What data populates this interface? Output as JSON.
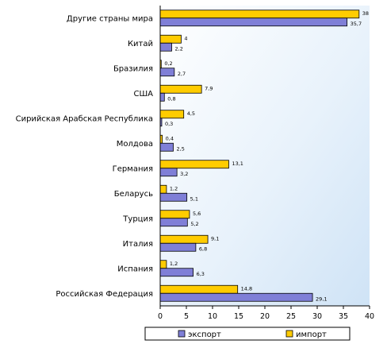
{
  "chart_data": {
    "type": "bar",
    "orientation": "horizontal",
    "categories": [
      "Другие страны мира",
      "Китай",
      "Бразилия",
      "США",
      "Сирийская Арабская Республика",
      "Молдова",
      "Германия",
      "Беларусь",
      "Турция",
      "Италия",
      "Испания",
      "Российская Федерация"
    ],
    "series": [
      {
        "name": "импорт",
        "color": "#FFCC00",
        "values": [
          38,
          4,
          0.2,
          7.9,
          4.5,
          0.4,
          13.1,
          1.2,
          5.6,
          9.1,
          1.2,
          14.8
        ],
        "labels": [
          "38",
          "4",
          "0,2",
          "7,9",
          "4,5",
          "0,4",
          "13,1",
          "1,2",
          "5,6",
          "9,1",
          "1,2",
          "14,8"
        ]
      },
      {
        "name": "экспорт",
        "color": "#7F7FD7",
        "values": [
          35.7,
          2.2,
          2.7,
          0.8,
          0.3,
          2.5,
          3.2,
          5.1,
          5.2,
          6.8,
          6.3,
          29.1
        ],
        "labels": [
          "35,7",
          "2,2",
          "2,7",
          "0,8",
          "0,3",
          "2,5",
          "3,2",
          "5,1",
          "5,2",
          "6,8",
          "6,3",
          "29,1"
        ]
      }
    ],
    "xlim": [
      0,
      40
    ],
    "xticks": [
      "0",
      "5",
      "10",
      "15",
      "20",
      "25",
      "30",
      "35",
      "40"
    ],
    "legend": {
      "placement": "bottom",
      "entries": [
        {
          "name": "экспорт",
          "color": "#7F7FD7"
        },
        {
          "name": "импорт",
          "color": "#FFCC00"
        }
      ]
    }
  }
}
